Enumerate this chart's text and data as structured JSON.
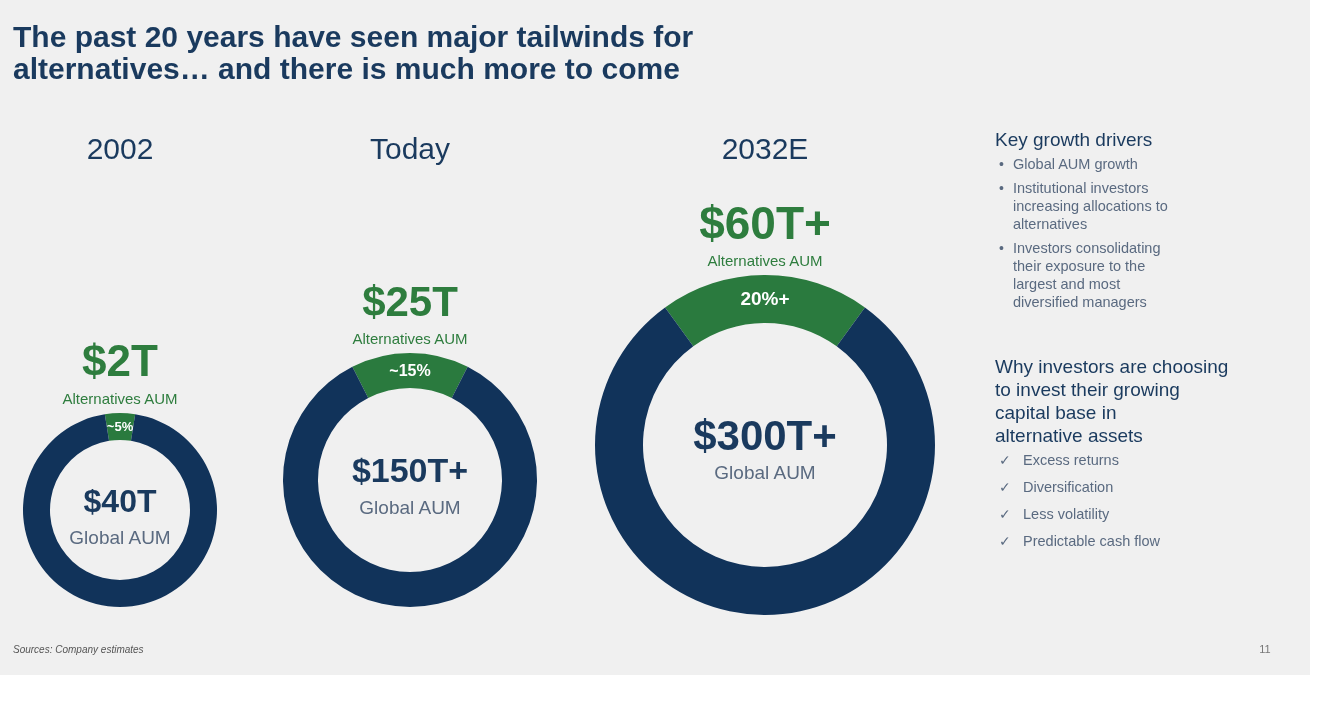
{
  "chart_data": [
    {
      "type": "other",
      "title": "The past 20 years have seen major tailwinds for alternatives… and there is much more to come",
      "annotations": [
        "Sources: Company estimates",
        "11"
      ]
    },
    {
      "type": "donut",
      "title": "2002",
      "categories": [
        "Alternatives AUM",
        "Global AUM"
      ],
      "values": [
        5,
        95
      ],
      "colors": [
        "#2a7a3e",
        "#11335a"
      ],
      "value_labels": [
        "~5%",
        null
      ],
      "annotations": [
        "$2T",
        "$40T"
      ]
    },
    {
      "type": "donut",
      "title": "Today",
      "categories": [
        "Alternatives AUM",
        "Global AUM"
      ],
      "values": [
        15,
        85
      ],
      "colors": [
        "#2a7a3e",
        "#11335a"
      ],
      "value_labels": [
        "~15%",
        null
      ],
      "annotations": [
        "$25T",
        "$150T+"
      ]
    },
    {
      "type": "donut",
      "title": "2032E",
      "categories": [
        "Alternatives AUM",
        "Global AUM"
      ],
      "values": [
        20,
        80
      ],
      "colors": [
        "#2a7a3e",
        "#11335a"
      ],
      "value_labels": [
        "20%+",
        null
      ],
      "annotations": [
        "$60T+",
        "$300T+"
      ]
    },
    {
      "type": "other",
      "title": "Key growth drivers",
      "annotations": [
        "• Global AUM growth",
        "• Institutional investors increasing allocations to alternatives",
        "• Investors consolidating their exposure to the largest and most diversified managers"
      ]
    },
    {
      "type": "other",
      "title": "Why investors are choosing to invest their growing capital base in alternative assets",
      "annotations": [
        "✓ Excess returns",
        "✓ Diversification",
        "✓ Less volatility",
        "✓ Predictable cash flow"
      ]
    }
  ]
}
